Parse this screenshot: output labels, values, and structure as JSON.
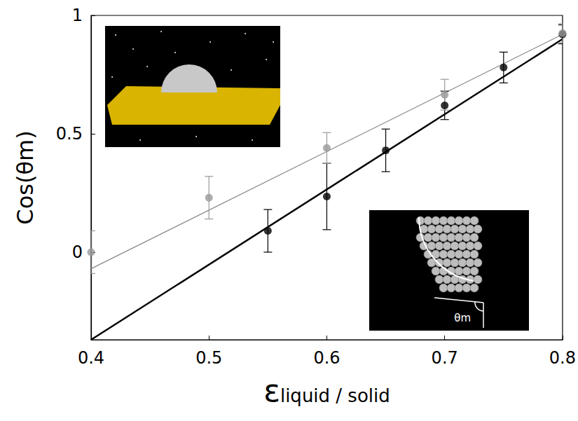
{
  "chart_data": {
    "type": "scatter",
    "x_label": "εliquid / solid",
    "y_label": "Cos(θm)",
    "annotation": "θm",
    "xlim": [
      0.4,
      0.8
    ],
    "xticks": [
      0.4,
      0.5,
      0.6,
      0.7,
      0.8
    ],
    "ylim": [
      -0.37,
      1
    ],
    "yticks": [
      0,
      0.5,
      1
    ],
    "grid": false,
    "series": [
      {
        "type": "line",
        "color": "#000000",
        "line_style": "thick",
        "marker": "none",
        "x": [
          0.4,
          0.8
        ],
        "values": [
          -0.37,
          0.9
        ]
      },
      {
        "type": "line",
        "color": "#888888",
        "line_style": "thin",
        "marker": "none",
        "x": [
          0.4,
          0.8
        ],
        "values": [
          -0.07,
          0.92
        ]
      },
      {
        "type": "scatter",
        "color": "#000000",
        "marker": "circle",
        "x": [
          0.55,
          0.6,
          0.65,
          0.7,
          0.75,
          0.8
        ],
        "values": [
          0.09,
          0.235,
          0.43,
          0.62,
          0.78,
          0.92
        ],
        "errors": [
          0.09,
          0.14,
          0.09,
          0.06,
          0.065,
          0.04
        ]
      },
      {
        "type": "scatter",
        "color": "#999999",
        "marker": "circle",
        "x": [
          0.4,
          0.5,
          0.6,
          0.7,
          0.8
        ],
        "values": [
          0.0,
          0.23,
          0.44,
          0.665,
          0.925
        ],
        "errors": [
          0.09,
          0.09,
          0.065,
          0.065,
          0.04
        ]
      }
    ]
  }
}
